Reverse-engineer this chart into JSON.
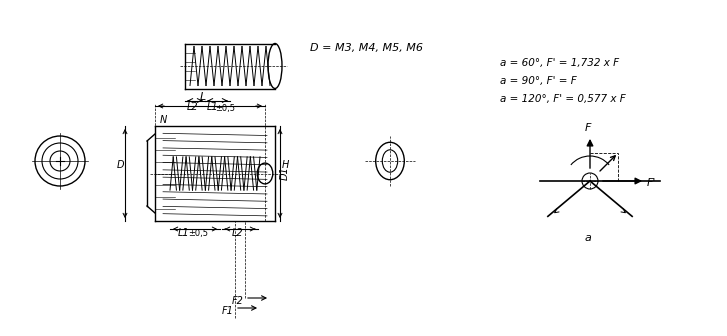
{
  "bg_color": "#ffffff",
  "line_color": "#000000",
  "text_color": "#000000",
  "formula_lines": [
    "a = 60°, F' = 1,732 x F",
    "a = 90°, F' = F",
    "a = 120°, F' = 0,577 x F"
  ],
  "d_label": "D = M3, M4, M5, M6",
  "dim_labels": {
    "F1": "F1",
    "F2": "F2",
    "L1": "L1",
    "L2": "L2",
    "L": "L",
    "H": "H",
    "D": "D",
    "N": "N",
    "D1": "D1",
    "a": "a",
    "F_label": "F",
    "Fprime": "F'"
  },
  "pm05": "±0,5"
}
